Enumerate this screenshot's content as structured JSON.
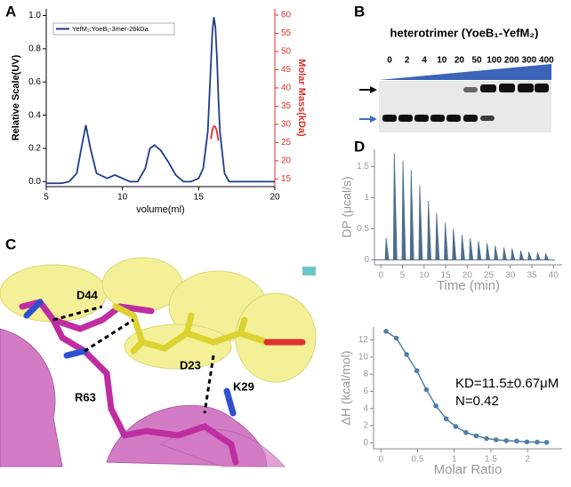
{
  "panel_labels": [
    "A",
    "B",
    "C",
    "D"
  ],
  "chart_data": [
    {
      "type": "line",
      "xlabel": "volume(ml)",
      "ylabel": "Relative Scale(UV)",
      "y2label": "Molar Mass(kDa)",
      "xlim": [
        5,
        20
      ],
      "xticks": [
        5,
        10,
        15,
        20
      ],
      "ylim": [
        -0.03,
        1.04
      ],
      "yticks": [
        {
          "value": 0,
          "label": "0.0"
        },
        {
          "value": 0.2,
          "label": "0.2"
        },
        {
          "value": 0.4,
          "label": "0.4"
        },
        {
          "value": 0.6,
          "label": "0.6"
        },
        {
          "value": 0.8,
          "label": "0.8"
        },
        {
          "value": 1,
          "label": "1.0"
        }
      ],
      "y2lim": [
        12.9,
        61.7
      ],
      "y2ticks": [
        15,
        20,
        25,
        30,
        35,
        40,
        45,
        50,
        55,
        60
      ],
      "x": [
        5,
        6,
        6.5,
        7,
        7.3,
        7.6,
        7.9,
        8.3,
        9,
        9.5,
        10,
        10.5,
        11,
        11.5,
        11.8,
        12.1,
        12.5,
        13,
        13.5,
        14,
        14.5,
        15,
        15.3,
        15.6,
        15.8,
        15.9,
        16,
        16.1,
        16.2,
        16.3,
        16.4,
        16.7,
        17,
        18,
        20
      ],
      "series": [
        {
          "name": "YefM₂:YoeB₁-3mer-26kDa",
          "color": "#1f3c8c",
          "values": [
            -0.01,
            -0.01,
            0,
            0.05,
            0.2,
            0.34,
            0.2,
            0.05,
            0.02,
            0.04,
            0.02,
            0,
            0,
            0.08,
            0.2,
            0.22,
            0.19,
            0.12,
            0.04,
            0,
            0,
            0.02,
            0.08,
            0.3,
            0.7,
            0.9,
            0.99,
            0.93,
            0.75,
            0.5,
            0.3,
            0.05,
            0,
            0,
            0
          ]
        },
        {
          "color": "#e0302a",
          "axis": "y2",
          "values": [
            null,
            null,
            null,
            null,
            null,
            null,
            null,
            null,
            null,
            null,
            null,
            null,
            null,
            null,
            null,
            null,
            null,
            null,
            null,
            null,
            null,
            null,
            null,
            null,
            26,
            28.5,
            29.5,
            29.3,
            28,
            25.5,
            null,
            null,
            null,
            null,
            null
          ]
        }
      ]
    },
    {
      "type": "impulse",
      "xlabel": "Time (min)",
      "ylabel": "DP (μcal/s)",
      "color": "#4d6d8c",
      "xlim": [
        -1.5,
        42
      ],
      "xticks": [
        0,
        5,
        10,
        15,
        20,
        25,
        30,
        35,
        40
      ],
      "ylim": [
        -0.08,
        1.78
      ],
      "yticks": [
        0,
        0.5,
        1,
        1.5
      ],
      "x": [
        1.2,
        3.1,
        5.1,
        7,
        9,
        11,
        12.9,
        14.9,
        16.8,
        18.8,
        20.7,
        22.6,
        24.6,
        26.5,
        28.5,
        30.4,
        32.4,
        34.3,
        36.3,
        38.2
      ],
      "values": [
        0.35,
        1.72,
        1.6,
        1.45,
        1.2,
        0.95,
        0.75,
        0.6,
        0.5,
        0.4,
        0.35,
        0.3,
        0.27,
        0.23,
        0.2,
        0.18,
        0.15,
        0.13,
        0.12,
        0.1
      ]
    },
    {
      "type": "scatter",
      "xlabel": "Molar Ratio",
      "ylabel": "ΔH (kcal/mol)",
      "color": "#4f7fa6",
      "annotations": [
        "KD=11.5±0.67μM",
        "N=0.42"
      ],
      "xlim": [
        -0.1,
        2.47
      ],
      "xticks": [
        0,
        0.5,
        1,
        1.5,
        2
      ],
      "ylim": [
        -0.7,
        13.5
      ],
      "yticks": [
        0,
        2,
        4,
        6,
        8,
        10,
        12
      ],
      "x": [
        0.07,
        0.21,
        0.35,
        0.49,
        0.62,
        0.75,
        0.89,
        1.02,
        1.16,
        1.3,
        1.44,
        1.57,
        1.71,
        1.85,
        1.99,
        2.13,
        2.26
      ],
      "values": [
        13,
        12.2,
        10.3,
        8.4,
        6.2,
        4.3,
        2.8,
        1.9,
        1.2,
        0.8,
        0.5,
        0.35,
        0.25,
        0.2,
        0.1,
        0.08,
        0.05
      ]
    }
  ],
  "gel": {
    "title": "heterotrimer (YoeB₁-YefM₂)",
    "lanes": [
      0,
      2,
      4,
      10,
      20,
      50,
      100,
      200,
      300,
      400
    ]
  },
  "structure": {
    "labels": [
      "D44",
      "D23",
      "R63",
      "K29"
    ]
  }
}
